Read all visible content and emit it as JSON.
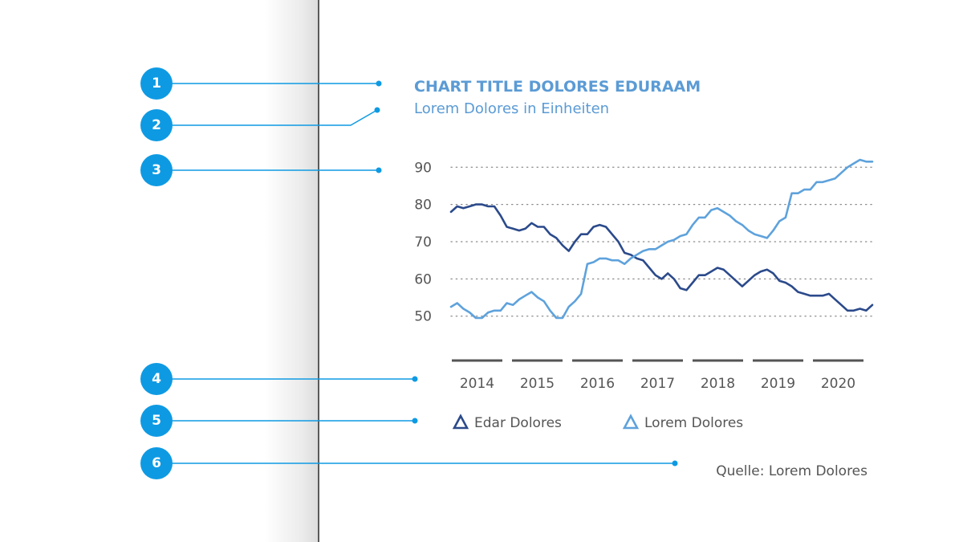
{
  "annotations": [
    "1",
    "2",
    "3",
    "4",
    "5",
    "6"
  ],
  "source": "Quelle: Lorem Dolores",
  "colors": {
    "accent": "#0e9ae3",
    "title": "#5b9bd5",
    "series_dark": "#2b4a8b",
    "series_light": "#5ea2dc",
    "axis_text": "#555555"
  },
  "chart_data": {
    "type": "line",
    "title": "CHART TITLE DOLORES EDURAAM",
    "subtitle": "Lorem Dolores in Einheiten",
    "ylabel": "",
    "xlabel": "",
    "xlim": [
      2013.6,
      2020.4
    ],
    "ylim": [
      48,
      92
    ],
    "y_ticks": [
      90,
      80,
      70,
      60,
      50
    ],
    "x_ticks": [
      "2014",
      "2015",
      "2016",
      "2017",
      "2018",
      "2019",
      "2020"
    ],
    "grid": "horizontal dotted",
    "legend": "bottom",
    "x": [
      2013.6,
      2013.7,
      2013.8,
      2013.9,
      2014.0,
      2014.1,
      2014.2,
      2014.3,
      2014.4,
      2014.5,
      2014.6,
      2014.7,
      2014.8,
      2014.9,
      2015.0,
      2015.1,
      2015.2,
      2015.3,
      2015.4,
      2015.5,
      2015.6,
      2015.7,
      2015.8,
      2015.9,
      2016.0,
      2016.1,
      2016.2,
      2016.3,
      2016.4,
      2016.5,
      2016.6,
      2016.7,
      2016.8,
      2016.9,
      2017.0,
      2017.1,
      2017.2,
      2017.3,
      2017.4,
      2017.5,
      2017.6,
      2017.7,
      2017.8,
      2017.9,
      2018.0,
      2018.1,
      2018.2,
      2018.3,
      2018.4,
      2018.5,
      2018.6,
      2018.7,
      2018.8,
      2018.9,
      2019.0,
      2019.1,
      2019.2,
      2019.3,
      2019.4,
      2019.5,
      2019.6,
      2019.7,
      2019.8,
      2019.9,
      2020.0,
      2020.1,
      2020.2,
      2020.3,
      2020.4
    ],
    "series": [
      {
        "name": "Edar Dolores",
        "color": "#2b4a8b",
        "values": [
          78,
          79.5,
          79,
          79.5,
          80,
          80,
          79.5,
          79.5,
          77,
          74,
          73.5,
          73,
          73.5,
          75,
          74,
          74,
          72,
          71,
          69,
          67.5,
          70,
          72,
          72,
          74,
          74.5,
          74,
          72,
          70,
          67,
          66.5,
          65.5,
          65,
          63,
          61,
          60,
          61.5,
          60,
          57.5,
          57,
          59,
          61,
          61,
          62,
          63,
          62.5,
          61,
          59.5,
          58,
          59.5,
          61,
          62,
          62.5,
          61.5,
          59.5,
          59,
          58,
          56.5,
          56,
          55.5,
          55.5,
          55.5,
          56,
          54.5,
          53,
          51.5,
          51.5,
          52,
          51.5,
          53
        ]
      },
      {
        "name": "Lorem Dolores",
        "color": "#5ea2dc",
        "values": [
          52.5,
          53.5,
          52,
          51,
          49.5,
          49.5,
          51,
          51.5,
          51.5,
          53.5,
          53,
          54.5,
          55.5,
          56.5,
          55,
          54,
          51.5,
          49.5,
          49.5,
          52.5,
          54,
          56,
          64,
          64.5,
          65.5,
          65.5,
          65,
          65,
          64,
          65.5,
          66.5,
          67.5,
          68,
          68,
          69,
          70,
          70.5,
          71.5,
          72,
          74.5,
          76.5,
          76.5,
          78.5,
          79,
          78,
          77,
          75.5,
          74.5,
          73,
          72,
          71.5,
          71,
          73,
          75.5,
          76.5,
          83,
          83,
          84,
          84,
          86,
          86,
          86.5,
          87,
          88.5,
          90,
          91,
          92,
          91.5,
          91.5
        ]
      }
    ]
  }
}
